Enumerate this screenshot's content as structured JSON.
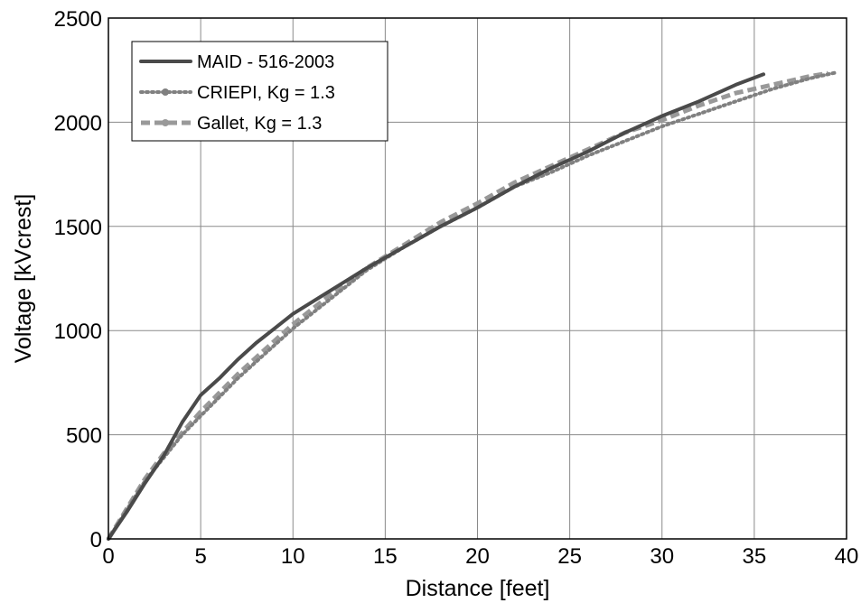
{
  "chart_data": {
    "type": "line",
    "title": "",
    "xlabel": "Distance [feet]",
    "ylabel": "Voltage [kVcrest]",
    "xlim": [
      0,
      40
    ],
    "ylim": [
      0,
      2500
    ],
    "xticks": [
      0,
      5,
      10,
      15,
      20,
      25,
      30,
      35,
      40
    ],
    "yticks": [
      0,
      500,
      1000,
      1500,
      2000,
      2500
    ],
    "grid": true,
    "legend_position": "top-left",
    "series": [
      {
        "name": "MAID - 516-2003",
        "color": "#4a4a4a",
        "style": "solid",
        "x": [
          0,
          1,
          2,
          3,
          4,
          5,
          6,
          7,
          8,
          9,
          10,
          12,
          14,
          16,
          18,
          20,
          22,
          24,
          26,
          28,
          30,
          32,
          34,
          35.5
        ],
        "y": [
          0,
          130,
          270,
          400,
          560,
          690,
          770,
          860,
          940,
          1010,
          1080,
          1190,
          1300,
          1400,
          1500,
          1590,
          1690,
          1780,
          1860,
          1950,
          2030,
          2100,
          2180,
          2230
        ]
      },
      {
        "name": "CRIEPI, Kg = 1.3",
        "color": "#808080",
        "style": "dotted",
        "x": [
          0,
          1,
          2,
          3,
          4,
          5,
          6,
          7,
          8,
          9,
          10,
          12,
          14,
          16,
          18,
          20,
          22,
          24,
          26,
          28,
          30,
          32,
          34,
          36,
          38,
          39.5
        ],
        "y": [
          0,
          140,
          280,
          390,
          500,
          590,
          680,
          770,
          850,
          930,
          1010,
          1150,
          1290,
          1400,
          1500,
          1590,
          1690,
          1760,
          1840,
          1910,
          1980,
          2040,
          2100,
          2160,
          2210,
          2240
        ]
      },
      {
        "name": "Gallet, Kg = 1.3",
        "color": "#999999",
        "style": "dashed",
        "x": [
          0,
          1,
          2,
          3,
          4,
          5,
          6,
          7,
          8,
          9,
          10,
          12,
          14,
          16,
          18,
          20,
          22,
          24,
          26,
          28,
          30,
          32,
          34,
          36,
          38,
          39
        ],
        "y": [
          0,
          145,
          290,
          410,
          510,
          610,
          700,
          790,
          870,
          950,
          1030,
          1170,
          1300,
          1410,
          1520,
          1610,
          1710,
          1790,
          1870,
          1950,
          2010,
          2080,
          2140,
          2180,
          2220,
          2235
        ]
      }
    ]
  }
}
